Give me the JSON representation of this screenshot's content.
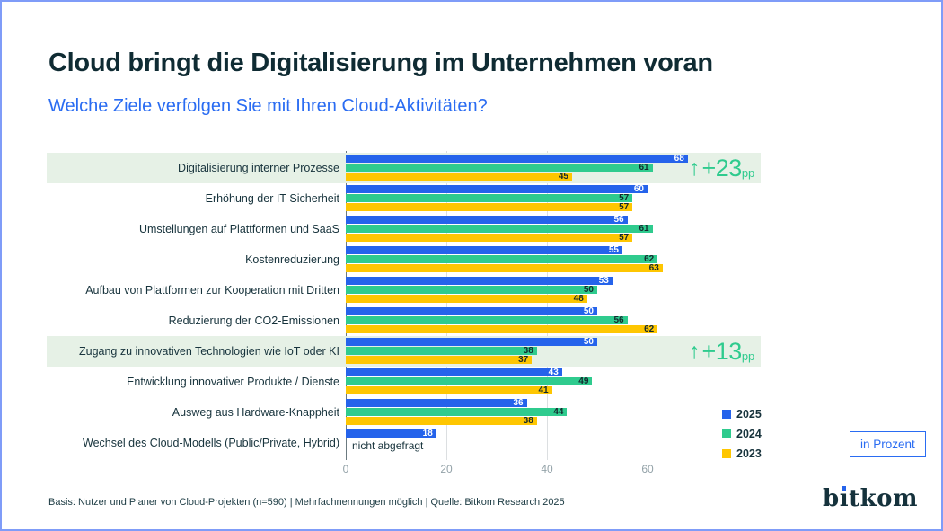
{
  "header": {
    "title": "Cloud bringt die Digitalisierung im Unternehmen voran",
    "subtitle": "Welche Ziele verfolgen Sie mit Ihren Cloud-Aktivitäten?"
  },
  "chart_data": {
    "type": "bar",
    "orientation": "horizontal",
    "unit": "percent",
    "title": "Welche Ziele verfolgen Sie mit Ihren Cloud-Aktivitäten?",
    "categories": [
      "Digitalisierung interner Prozesse",
      "Erhöhung der IT-Sicherheit",
      "Umstellungen auf Plattformen und SaaS",
      "Kostenreduzierung",
      "Aufbau von Plattformen zur Kooperation mit Dritten",
      "Reduzierung der CO2-Emissionen",
      "Zugang zu innovativen Technologien wie IoT oder KI",
      "Entwicklung innovativer Produkte / Dienste",
      "Ausweg aus Hardware-Knappheit",
      "Wechsel des Cloud-Modells (Public/Private, Hybrid)"
    ],
    "series": [
      {
        "name": "2025",
        "color": "#2563eb",
        "value_label_style": "light",
        "values": [
          68,
          60,
          56,
          55,
          53,
          50,
          50,
          43,
          36,
          18
        ]
      },
      {
        "name": "2024",
        "color": "#2fcb8e",
        "value_label_style": "dark",
        "values": [
          61,
          57,
          61,
          62,
          50,
          56,
          38,
          49,
          44,
          null
        ]
      },
      {
        "name": "2023",
        "color": "#fec601",
        "value_label_style": "dark",
        "values": [
          45,
          57,
          57,
          63,
          48,
          62,
          37,
          41,
          38,
          null
        ]
      }
    ],
    "not_asked": {
      "category_index": 9,
      "label": "nicht abgefragt"
    },
    "highlights": [
      {
        "category_index": 0,
        "arrow": "↑",
        "delta": "+23",
        "suffix": "pp"
      },
      {
        "category_index": 6,
        "arrow": "↑",
        "delta": "+13",
        "suffix": "pp"
      }
    ],
    "x_ticks": [
      0,
      20,
      40,
      60
    ],
    "xlim": [
      0,
      71
    ],
    "grid": true,
    "legend_position": "bottom-right"
  },
  "legend": {
    "items": [
      {
        "label": "2025",
        "color": "#2563eb"
      },
      {
        "label": "2024",
        "color": "#2fcb8e"
      },
      {
        "label": "2023",
        "color": "#fec601"
      }
    ]
  },
  "unit_badge": "in Prozent",
  "footer": "Basis: Nutzer und Planer von Cloud-Projekten (n=590) | Mehrfachnennungen möglich | Quelle: Bitkom Research 2025",
  "logo": {
    "text_pre": "b",
    "text_stem": "ı",
    "text_rest": "tkom",
    "dot_color": "#2563eb"
  },
  "colors": {
    "accent_blue": "#2a6cf2",
    "highlight_band": "#e6f1e6",
    "annotation_green": "#2fcb8e",
    "title_dark": "#0f2b33",
    "frame_blue": "#7f9cf8"
  }
}
